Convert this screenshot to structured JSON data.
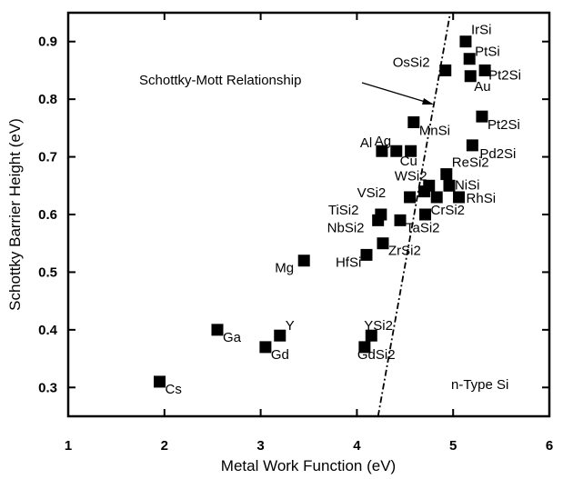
{
  "chart_data": {
    "type": "scatter",
    "xlabel": "Metal Work Function (eV)",
    "ylabel": "Schottky Barrier Height (eV)",
    "xlim": [
      1,
      6
    ],
    "ylim": [
      0.25,
      0.95
    ],
    "xticks": [
      "1",
      "2",
      "3",
      "4",
      "5",
      "6"
    ],
    "yticks": [
      "0.3",
      "0.4",
      "0.5",
      "0.6",
      "0.7",
      "0.8",
      "0.9"
    ],
    "grid": false,
    "annotation": "Schottky-Mott Relationship",
    "region_label": "n-Type Si",
    "line": {
      "name": "Schottky-Mott Relationship",
      "x": [
        4.22,
        4.97
      ],
      "y": [
        0.25,
        0.95
      ]
    },
    "points": [
      {
        "label": "Cs",
        "x": 1.95,
        "y": 0.31
      },
      {
        "label": "Ga",
        "x": 2.55,
        "y": 0.4
      },
      {
        "label": "Gd",
        "x": 3.05,
        "y": 0.37
      },
      {
        "label": "Y",
        "x": 3.2,
        "y": 0.39
      },
      {
        "label": "Mg",
        "x": 3.45,
        "y": 0.52
      },
      {
        "label": "HfSi",
        "x": 4.1,
        "y": 0.53
      },
      {
        "label": "ZrSi2",
        "x": 4.27,
        "y": 0.55
      },
      {
        "label": "GdSi2",
        "x": 4.08,
        "y": 0.37
      },
      {
        "label": "YSi2",
        "x": 4.15,
        "y": 0.39
      },
      {
        "label": "NbSi2",
        "x": 4.22,
        "y": 0.59
      },
      {
        "label": "TiSi2",
        "x": 4.25,
        "y": 0.6
      },
      {
        "label": "TaSi2",
        "x": 4.45,
        "y": 0.59
      },
      {
        "label": "VSi2",
        "x": 4.55,
        "y": 0.63
      },
      {
        "label": "WSi2",
        "x": 4.75,
        "y": 0.65
      },
      {
        "label": "",
        "x": 4.7,
        "y": 0.64
      },
      {
        "label": "CrSi2",
        "x": 4.71,
        "y": 0.6
      },
      {
        "label": "",
        "x": 4.83,
        "y": 0.63
      },
      {
        "label": "ReSi2",
        "x": 4.93,
        "y": 0.67
      },
      {
        "label": "NiSi",
        "x": 4.96,
        "y": 0.65
      },
      {
        "label": "RhSi",
        "x": 5.06,
        "y": 0.63
      },
      {
        "label": "Al",
        "x": 4.26,
        "y": 0.71
      },
      {
        "label": "Ag",
        "x": 4.41,
        "y": 0.71
      },
      {
        "label": "Cu",
        "x": 4.56,
        "y": 0.71
      },
      {
        "label": "MnSi",
        "x": 4.59,
        "y": 0.76
      },
      {
        "label": "Pd2Si",
        "x": 5.2,
        "y": 0.72
      },
      {
        "label": "Pt2Si",
        "x": 5.3,
        "y": 0.77
      },
      {
        "label": "OsSi2",
        "x": 4.92,
        "y": 0.85
      },
      {
        "label": "IrSi",
        "x": 5.13,
        "y": 0.9
      },
      {
        "label": "PtSi",
        "x": 5.17,
        "y": 0.87
      },
      {
        "label": "Au",
        "x": 5.18,
        "y": 0.84
      },
      {
        "label": "Pt2Si",
        "x": 5.33,
        "y": 0.85
      }
    ]
  }
}
